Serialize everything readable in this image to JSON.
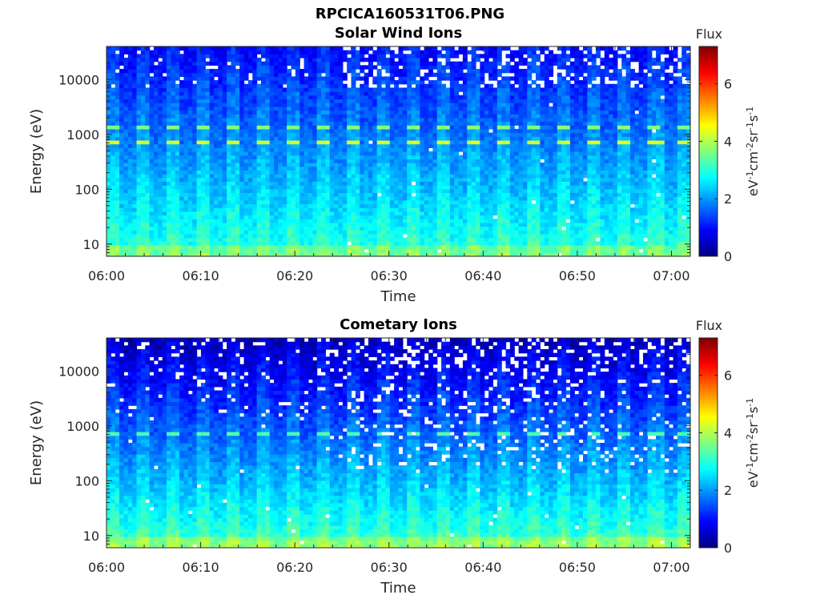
{
  "figure": {
    "title": "RPCICA160531T06.PNG"
  },
  "chart_data": [
    {
      "type": "heatmap",
      "title": "Solar Wind Ions",
      "xlabel": "Time",
      "ylabel": "Energy (eV)",
      "x_ticks": [
        "06:00",
        "06:10",
        "06:20",
        "06:30",
        "06:40",
        "06:50",
        "07:00"
      ],
      "x_range": [
        "06:00",
        "07:02"
      ],
      "y_scale": "log",
      "y_ticks": [
        10,
        100,
        1000,
        10000
      ],
      "y_range": [
        6,
        40000
      ],
      "colorbar": {
        "title": "Flux",
        "label": "eV-1cm-2sr-1s-1",
        "ticks": [
          0,
          2,
          4,
          6
        ],
        "range": [
          0,
          7.3
        ],
        "colormap": "jet"
      },
      "features": {
        "peak_energy_eV": 700,
        "secondary_energy_eV": 1400,
        "peak_flux": 4.3,
        "background_flux_high_energy": 1.0,
        "low_energy_flux": 3.2,
        "scan_period_min": 3.2
      }
    },
    {
      "type": "heatmap",
      "title": "Cometary Ions",
      "xlabel": "Time",
      "ylabel": "Energy (eV)",
      "x_ticks": [
        "06:00",
        "06:10",
        "06:20",
        "06:30",
        "06:40",
        "06:50",
        "07:00"
      ],
      "x_range": [
        "06:00",
        "07:02"
      ],
      "y_scale": "log",
      "y_ticks": [
        10,
        100,
        1000,
        10000
      ],
      "y_range": [
        6,
        40000
      ],
      "colorbar": {
        "title": "Flux",
        "label": "eV-1cm-2sr-1s-1",
        "ticks": [
          0,
          2,
          4,
          6
        ],
        "range": [
          0,
          7.3
        ],
        "colormap": "jet"
      },
      "features": {
        "peak_energy_eV": 700,
        "peak_flux": 3.3,
        "background_flux_high_energy": 0.5,
        "low_energy_flux": 3.4,
        "scan_period_min": 3.2
      }
    }
  ]
}
